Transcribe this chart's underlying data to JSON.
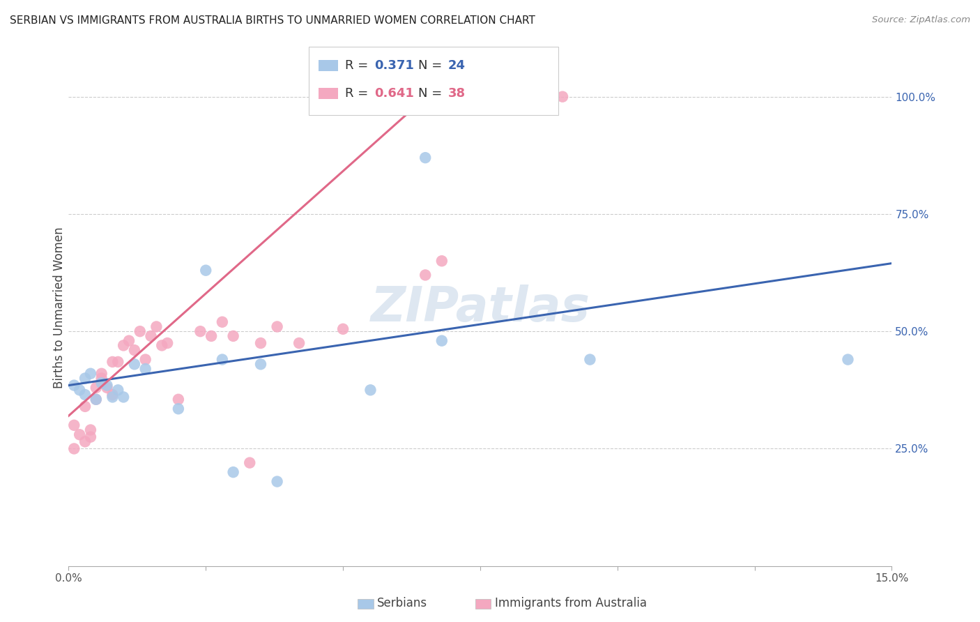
{
  "title": "SERBIAN VS IMMIGRANTS FROM AUSTRALIA BIRTHS TO UNMARRIED WOMEN CORRELATION CHART",
  "source": "Source: ZipAtlas.com",
  "ylabel": "Births to Unmarried Women",
  "xlim": [
    0.0,
    0.15
  ],
  "ylim": [
    0.0,
    1.1
  ],
  "r_serbian": "0.371",
  "n_serbian": "24",
  "r_australia": "0.641",
  "n_australia": "38",
  "serbian_scatter_color": "#a8c8e8",
  "australia_scatter_color": "#f4a8c0",
  "serbian_line_color": "#3a64b0",
  "australia_line_color": "#e06888",
  "text_blue": "#3a64b0",
  "text_pink": "#e06888",
  "watermark_color": "#c8d8e8",
  "serbian_line_x0": 0.0,
  "serbian_line_y0": 0.385,
  "serbian_line_x1": 0.15,
  "serbian_line_y1": 0.645,
  "australia_line_x0": 0.0,
  "australia_line_y0": 0.32,
  "australia_line_x1": 0.07,
  "australia_line_y1": 1.05,
  "serbian_x": [
    0.001,
    0.002,
    0.003,
    0.003,
    0.004,
    0.005,
    0.006,
    0.007,
    0.008,
    0.009,
    0.01,
    0.012,
    0.014,
    0.02,
    0.025,
    0.028,
    0.03,
    0.035,
    0.038,
    0.055,
    0.065,
    0.068,
    0.095,
    0.142
  ],
  "serbian_y": [
    0.385,
    0.375,
    0.365,
    0.4,
    0.41,
    0.355,
    0.39,
    0.385,
    0.36,
    0.375,
    0.36,
    0.43,
    0.42,
    0.335,
    0.63,
    0.44,
    0.2,
    0.43,
    0.18,
    0.375,
    0.87,
    0.48,
    0.44,
    0.44
  ],
  "australia_x": [
    0.001,
    0.001,
    0.002,
    0.003,
    0.003,
    0.004,
    0.004,
    0.005,
    0.005,
    0.006,
    0.006,
    0.007,
    0.008,
    0.008,
    0.009,
    0.01,
    0.011,
    0.012,
    0.013,
    0.014,
    0.015,
    0.016,
    0.017,
    0.018,
    0.02,
    0.024,
    0.026,
    0.028,
    0.03,
    0.033,
    0.035,
    0.038,
    0.042,
    0.05,
    0.06,
    0.065,
    0.068,
    0.09
  ],
  "australia_y": [
    0.25,
    0.3,
    0.28,
    0.265,
    0.34,
    0.29,
    0.275,
    0.355,
    0.38,
    0.41,
    0.4,
    0.38,
    0.365,
    0.435,
    0.435,
    0.47,
    0.48,
    0.46,
    0.5,
    0.44,
    0.49,
    0.51,
    0.47,
    0.475,
    0.355,
    0.5,
    0.49,
    0.52,
    0.49,
    0.22,
    0.475,
    0.51,
    0.475,
    0.505,
    1.0,
    0.62,
    0.65,
    1.0
  ],
  "yticks": [
    0.25,
    0.5,
    0.75,
    1.0
  ],
  "ytick_labels": [
    "25.0%",
    "50.0%",
    "75.0%",
    "100.0%"
  ],
  "xtick_positions": [
    0.0,
    0.025,
    0.05,
    0.075,
    0.1,
    0.125,
    0.15
  ],
  "xtick_labels": [
    "0.0%",
    "",
    "",
    "",
    "",
    "",
    "15.0%"
  ]
}
